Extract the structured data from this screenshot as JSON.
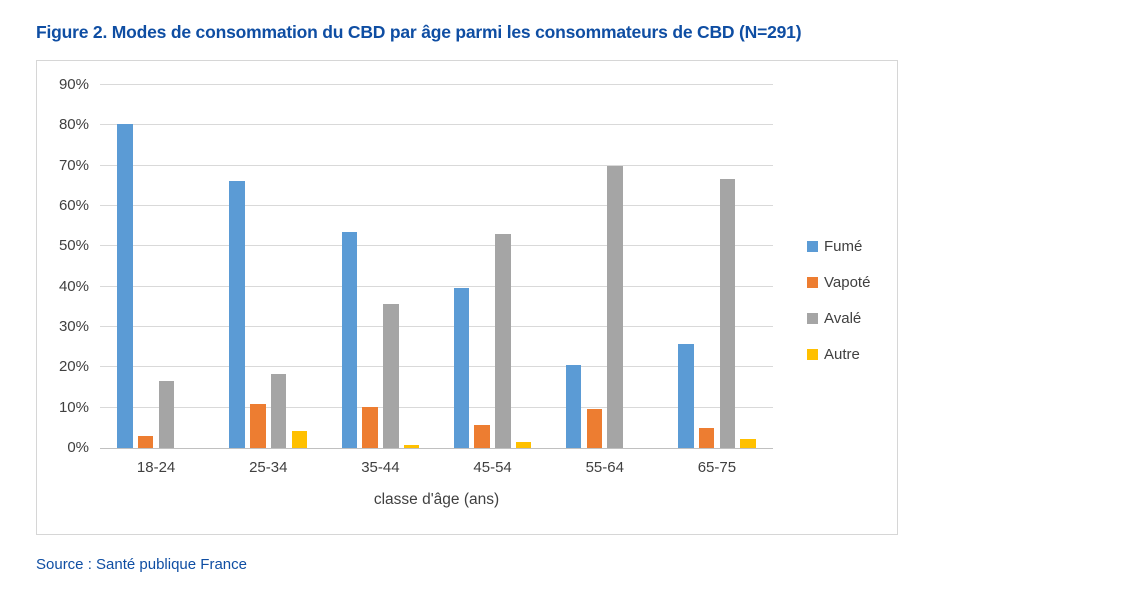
{
  "figure": {
    "title": "Figure 2. Modes de consommation du CBD par âge parmi les consommateurs de CBD (N=291)",
    "source": "Source : Santé publique France",
    "accent_color": "#0F4EA3"
  },
  "chart_data": {
    "type": "bar",
    "title": "Modes de consommation du CBD par âge parmi les consommateurs de CBD",
    "categories": [
      "18-24",
      "25-34",
      "35-44",
      "45-54",
      "55-64",
      "65-75"
    ],
    "series": [
      {
        "name": "Fumé",
        "color": "#5B9BD5",
        "values": [
          80.3,
          66.2,
          53.5,
          39.6,
          20.5,
          25.8
        ]
      },
      {
        "name": "Vapoté",
        "color": "#ED7D31",
        "values": [
          3.0,
          11.0,
          10.1,
          5.6,
          9.6,
          5.0
        ]
      },
      {
        "name": "Avalé",
        "color": "#A5A5A5",
        "values": [
          16.5,
          18.4,
          35.6,
          53.0,
          69.8,
          66.7
        ]
      },
      {
        "name": "Autre",
        "color": "#FFC000",
        "values": [
          0,
          4.2,
          0.7,
          1.5,
          0,
          2.3
        ]
      }
    ],
    "xlabel": "classe d'âge (ans)",
    "ylabel": "",
    "ylim": [
      0,
      90
    ],
    "ytick_step": 10,
    "ytick_suffix": "%",
    "grid": true,
    "legend_position": "right",
    "gridline_color": "#D9D9D9",
    "axis_line_color": "#C0C0C0",
    "tick_label_color": "#404040"
  }
}
